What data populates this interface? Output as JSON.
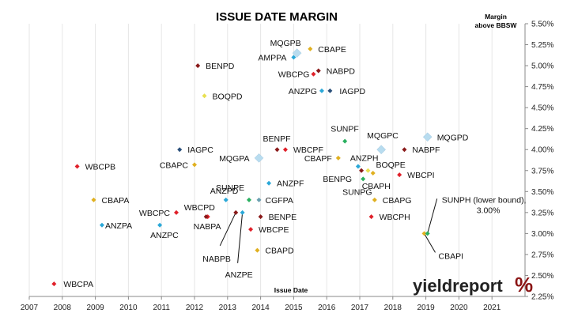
{
  "chart_data": {
    "type": "scatter",
    "title": "ISSUE DATE MARGIN",
    "ylabel": [
      "Margin",
      "above BBSW"
    ],
    "xlabel": "Issue Date",
    "xlim": [
      2007,
      2022
    ],
    "ylim": [
      2.25,
      5.5
    ],
    "x_ticks": [
      "2007",
      "2008",
      "2009",
      "2010",
      "2011",
      "2012",
      "2013",
      "2014",
      "2015",
      "2016",
      "2017",
      "2018",
      "2019",
      "2020",
      "2021"
    ],
    "y_ticks": [
      "5.50%",
      "5.25%",
      "5.00%",
      "4.75%",
      "4.50%",
      "4.25%",
      "4.00%",
      "3.75%",
      "3.50%",
      "3.25%",
      "3.00%",
      "2.75%",
      "2.50%",
      "2.25%"
    ],
    "grid": "vertical",
    "points": [
      {
        "label": "WBCPA",
        "x": 2007.75,
        "y": 2.4,
        "color": "#e0202a",
        "shape": "diamond"
      },
      {
        "label": "WBCPB",
        "x": 2008.45,
        "y": 3.8,
        "color": "#e0202a",
        "shape": "diamond"
      },
      {
        "label": "CBAPA",
        "x": 2008.95,
        "y": 3.4,
        "color": "#e0b020",
        "shape": "diamond"
      },
      {
        "label": "ANZPA",
        "x": 2009.2,
        "y": 3.1,
        "color": "#2aa8d8",
        "shape": "diamond"
      },
      {
        "label": "WBCPC",
        "x": 2011.45,
        "y": 3.25,
        "color": "#e0202a",
        "shape": "diamond"
      },
      {
        "label": "ANZPC",
        "x": 2010.95,
        "y": 3.1,
        "color": "#2aa8d8",
        "shape": "diamond"
      },
      {
        "label": "IAGPC",
        "x": 2011.55,
        "y": 4.0,
        "color": "#2a4f7a",
        "shape": "diamond"
      },
      {
        "label": "CBAPC",
        "x": 2012.0,
        "y": 3.82,
        "color": "#e0b020",
        "shape": "diamond"
      },
      {
        "label": "BENPD",
        "x": 2012.1,
        "y": 5.0,
        "color": "#8a1a1a",
        "shape": "diamond"
      },
      {
        "label": "BOQPD",
        "x": 2012.3,
        "y": 4.64,
        "color": "#e8e050",
        "shape": "diamond"
      },
      {
        "label": "WBCPD",
        "x": 2012.4,
        "y": 3.2,
        "color": "#e0202a",
        "shape": "diamond"
      },
      {
        "label": "NABPA",
        "x": 2012.35,
        "y": 3.2,
        "color": "#8a1a1a",
        "shape": "diamond"
      },
      {
        "label": "ANZPD",
        "x": 2012.95,
        "y": 3.4,
        "color": "#2aa8d8",
        "shape": "diamond"
      },
      {
        "label": "NABPB",
        "x": 2013.25,
        "y": 3.25,
        "color": "#8a1a1a",
        "shape": "diamond"
      },
      {
        "label": "ANZPE",
        "x": 2013.45,
        "y": 3.25,
        "color": "#2aa8d8",
        "shape": "diamond"
      },
      {
        "label": "SUNPE",
        "x": 2013.65,
        "y": 3.4,
        "color": "#2ab060",
        "shape": "diamond"
      },
      {
        "label": "CGFPA",
        "x": 2013.95,
        "y": 3.4,
        "color": "#6aa0b0",
        "shape": "diamond"
      },
      {
        "label": "BENPE",
        "x": 2014.0,
        "y": 3.2,
        "color": "#8a1a1a",
        "shape": "diamond"
      },
      {
        "label": "WBCPE",
        "x": 2013.7,
        "y": 3.05,
        "color": "#e0202a",
        "shape": "diamond"
      },
      {
        "label": "CBAPD",
        "x": 2013.9,
        "y": 2.8,
        "color": "#e0b020",
        "shape": "diamond"
      },
      {
        "label": "MQGPA",
        "x": 2013.95,
        "y": 3.9,
        "color": "#b8dcef",
        "shape": "diamond-lg"
      },
      {
        "label": "ANZPF",
        "x": 2014.25,
        "y": 3.6,
        "color": "#2aa8d8",
        "shape": "diamond"
      },
      {
        "label": "BENPF",
        "x": 2014.5,
        "y": 4.0,
        "color": "#8a1a1a",
        "shape": "diamond"
      },
      {
        "label": "WBCPF",
        "x": 2014.75,
        "y": 4.0,
        "color": "#e0202a",
        "shape": "diamond"
      },
      {
        "label": "AMPPA",
        "x": 2015.0,
        "y": 5.1,
        "color": "#2aa8d8",
        "shape": "diamond"
      },
      {
        "label": "MQGPB",
        "x": 2015.1,
        "y": 5.15,
        "color": "#b8dcef",
        "shape": "diamond-lg"
      },
      {
        "label": "CBAPE",
        "x": 2015.5,
        "y": 5.2,
        "color": "#e0b020",
        "shape": "diamond"
      },
      {
        "label": "WBCPG",
        "x": 2015.6,
        "y": 4.9,
        "color": "#e0202a",
        "shape": "diamond"
      },
      {
        "label": "NABPD",
        "x": 2015.75,
        "y": 4.94,
        "color": "#8a1a1a",
        "shape": "diamond"
      },
      {
        "label": "ANZPG",
        "x": 2015.85,
        "y": 4.7,
        "color": "#2aa8d8",
        "shape": "diamond"
      },
      {
        "label": "IAGPD",
        "x": 2016.1,
        "y": 4.7,
        "color": "#2a4f7a",
        "shape": "diamond"
      },
      {
        "label": "SUNPF",
        "x": 2016.55,
        "y": 4.1,
        "color": "#2ab060",
        "shape": "diamond"
      },
      {
        "label": "CBAPF",
        "x": 2016.35,
        "y": 3.9,
        "color": "#e0b020",
        "shape": "diamond"
      },
      {
        "label": "ANZPH",
        "x": 2016.95,
        "y": 3.8,
        "color": "#2aa8d8",
        "shape": "diamond"
      },
      {
        "label": "BENPG",
        "x": 2017.05,
        "y": 3.75,
        "color": "#8a1a1a",
        "shape": "diamond"
      },
      {
        "label": "BOQPE",
        "x": 2017.25,
        "y": 3.75,
        "color": "#e8e050",
        "shape": "diamond"
      },
      {
        "label": "SUNPG",
        "x": 2017.1,
        "y": 3.65,
        "color": "#2ab060",
        "shape": "diamond"
      },
      {
        "label": "CBAPH",
        "x": 2017.4,
        "y": 3.72,
        "color": "#e0b020",
        "shape": "diamond"
      },
      {
        "label": "MQGPC",
        "x": 2017.65,
        "y": 4.0,
        "color": "#b8dcef",
        "shape": "diamond-lg"
      },
      {
        "label": "CBAPG",
        "x": 2017.45,
        "y": 3.4,
        "color": "#e0b020",
        "shape": "diamond"
      },
      {
        "label": "WBCPH",
        "x": 2017.35,
        "y": 3.2,
        "color": "#e0202a",
        "shape": "diamond"
      },
      {
        "label": "NABPF",
        "x": 2018.35,
        "y": 4.0,
        "color": "#8a1a1a",
        "shape": "diamond"
      },
      {
        "label": "WBCPI",
        "x": 2018.2,
        "y": 3.7,
        "color": "#e0202a",
        "shape": "diamond"
      },
      {
        "label": "MQGPD",
        "x": 2019.05,
        "y": 4.15,
        "color": "#b8dcef",
        "shape": "diamond-lg"
      },
      {
        "label": "CBAPI",
        "x": 2018.95,
        "y": 3.0,
        "color": "#e0b020",
        "shape": "diamond"
      },
      {
        "label": "SUNPH (lower bound),",
        "label2": "3.00%",
        "x": 2019.05,
        "y": 3.0,
        "color": "#2ab060",
        "shape": "diamond"
      }
    ],
    "logo": {
      "text": "yieldreport",
      "symbol": "%"
    }
  }
}
